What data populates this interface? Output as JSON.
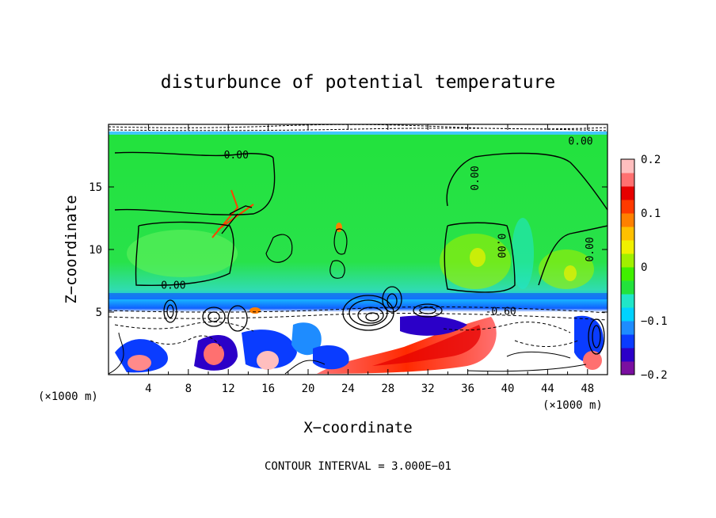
{
  "chart_data": {
    "type": "heatmap",
    "title": "disturbunce of potential temperature",
    "xlabel": "X−coordinate",
    "ylabel": "Z−coordinate",
    "x_unit": "(×1000 m)",
    "x_unit_right": "(×1000 m)",
    "footer": "CONTOUR INTERVAL = 3.000E−01",
    "xlim": [
      0,
      50
    ],
    "ylim": [
      0,
      20
    ],
    "x_ticks": [
      4,
      8,
      12,
      16,
      20,
      24,
      28,
      32,
      36,
      40,
      44,
      48
    ],
    "x_tick_labels": [
      "4",
      "8",
      "12",
      "16",
      "20",
      "24",
      "28",
      "32",
      "36",
      "40",
      "44",
      "48"
    ],
    "y_ticks": [
      5,
      10,
      15
    ],
    "y_tick_labels": [
      "5",
      "10",
      "15"
    ],
    "colorbar": {
      "range": [
        -0.2,
        0.2
      ],
      "ticks": [
        0.2,
        0.1,
        0,
        -0.1,
        -0.2
      ],
      "tick_labels": [
        "0.2",
        "0.1",
        "0",
        "−0.1",
        "−0.2"
      ],
      "colors": [
        "#7a0fa0",
        "#2b00c8",
        "#0a3cff",
        "#1e8cff",
        "#00d2ff",
        "#20e6c8",
        "#22e23c",
        "#40f000",
        "#a0f000",
        "#f0f000",
        "#ffc000",
        "#ff8000",
        "#ff3a00",
        "#e60000",
        "#ff7070",
        "#ffbebe"
      ]
    },
    "contour_labels": [
      {
        "text": "0.00",
        "x": 12.8,
        "y": 17.5,
        "rotate": 0
      },
      {
        "text": "0.00",
        "x": 6.5,
        "y": 7.1,
        "rotate": 0
      },
      {
        "text": "0.00",
        "x": 36.8,
        "y": 15.7,
        "rotate": -90
      },
      {
        "text": "0.00",
        "x": 39.3,
        "y": 10.3,
        "rotate": 90
      },
      {
        "text": "0.00",
        "x": 48.3,
        "y": 10.0,
        "rotate": -90
      },
      {
        "text": "0.00",
        "x": 47.3,
        "y": 18.6,
        "rotate": 0
      },
      {
        "text": "-0.60",
        "x": 39.3,
        "y": 5.0,
        "rotate": 0
      }
    ],
    "grid": false,
    "legend": "colorbar-right"
  }
}
